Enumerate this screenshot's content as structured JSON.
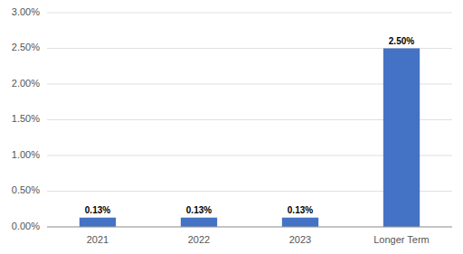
{
  "chart_data": {
    "type": "bar",
    "categories": [
      "2021",
      "2022",
      "2023",
      "Longer Term"
    ],
    "values": [
      0.0013,
      0.0013,
      0.0013,
      0.025
    ],
    "value_labels": [
      "0.13%",
      "0.13%",
      "0.13%",
      "2.50%"
    ],
    "data_labels": true,
    "color": "#4472C4",
    "ylim": [
      0,
      0.03
    ],
    "yticks": [
      {
        "value": 0.0,
        "label": "0.00%"
      },
      {
        "value": 0.005,
        "label": "0.50%"
      },
      {
        "value": 0.01,
        "label": "1.00%"
      },
      {
        "value": 0.015,
        "label": "1.50%"
      },
      {
        "value": 0.02,
        "label": "2.00%"
      },
      {
        "value": 0.025,
        "label": "2.50%"
      },
      {
        "value": 0.03,
        "label": "3.00%"
      }
    ],
    "grid": true
  }
}
